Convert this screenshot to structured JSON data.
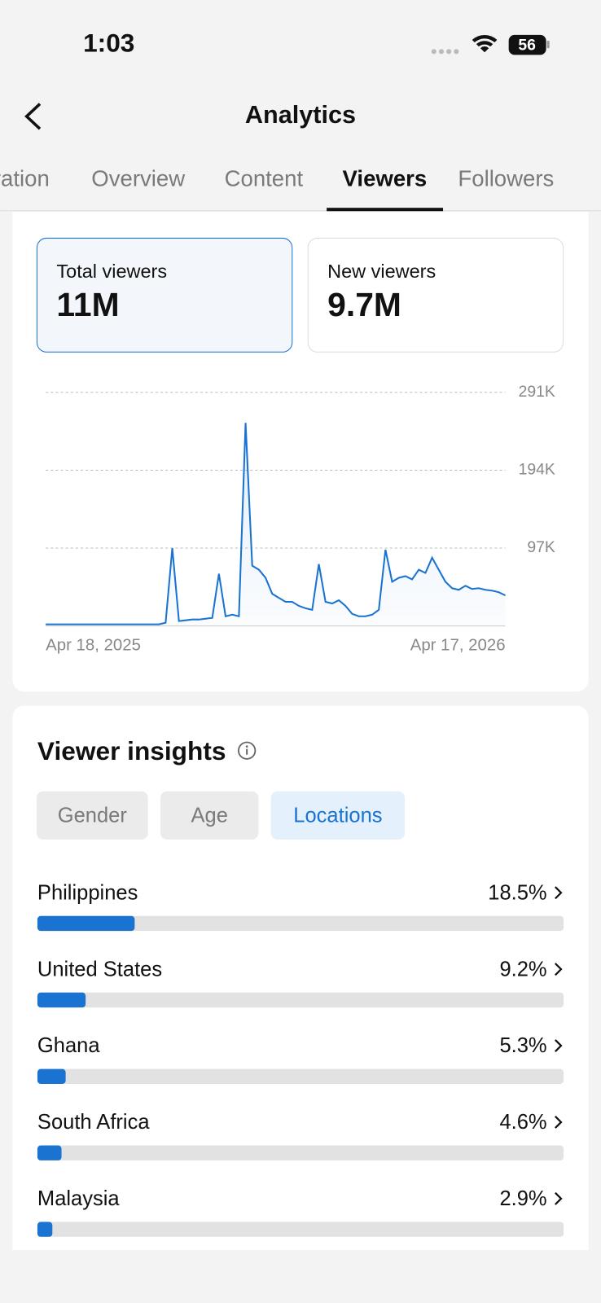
{
  "status_bar": {
    "time": "1:03",
    "battery": "56"
  },
  "header": {
    "title": "Analytics"
  },
  "tabs": [
    "ration",
    "Overview",
    "Content",
    "Viewers",
    "Followers"
  ],
  "active_tab": 3,
  "cards": [
    {
      "label": "Total viewers",
      "value": "11M"
    },
    {
      "label": "New viewers",
      "value": "9.7M"
    }
  ],
  "chart_data": {
    "type": "line",
    "color": "#1a73d1",
    "grid": true,
    "categories": [
      "Apr 18, 2025",
      null,
      null,
      null,
      null,
      null,
      null,
      null,
      null,
      null,
      null,
      null,
      null,
      null,
      null,
      null,
      null,
      null,
      null,
      null,
      null,
      null,
      null,
      null,
      null,
      null,
      null,
      null,
      null,
      null,
      null,
      null,
      null,
      null,
      null,
      null,
      null,
      null,
      null,
      null,
      null,
      null,
      null,
      null,
      null,
      null,
      null,
      null,
      null,
      null,
      null,
      null,
      null,
      null,
      null,
      null,
      null,
      null,
      null,
      null,
      null,
      null,
      null,
      null,
      null,
      null,
      null,
      null,
      null,
      "Apr 17, 2026"
    ],
    "values": [
      2000,
      2000,
      2000,
      2000,
      2000,
      2000,
      2000,
      2000,
      2000,
      2000,
      2000,
      2000,
      2000,
      2000,
      2000,
      2000,
      2000,
      2000,
      4000,
      97000,
      6000,
      7000,
      8000,
      8000,
      9000,
      10000,
      65000,
      12000,
      14000,
      12000,
      253000,
      75000,
      70000,
      60000,
      40000,
      35000,
      30000,
      30000,
      25000,
      22000,
      20000,
      77000,
      30000,
      28000,
      32000,
      25000,
      15000,
      12000,
      12000,
      14000,
      20000,
      95000,
      55000,
      60000,
      62000,
      58000,
      70000,
      66000,
      85000,
      70000,
      55000,
      47000,
      45000,
      50000,
      46000,
      47000,
      45000,
      44000,
      42000,
      38000
    ],
    "ylim": [
      0,
      291000
    ],
    "yticks": [
      {
        "value": 97000,
        "label": "97K"
      },
      {
        "value": 194000,
        "label": "194K"
      },
      {
        "value": 291000,
        "label": "291K"
      }
    ]
  },
  "insights": {
    "title": "Viewer insights",
    "chips": [
      "Gender",
      "Age",
      "Locations"
    ],
    "active_chip": 2,
    "locations": {
      "categories": [
        "Philippines",
        "United States",
        "Ghana",
        "South Africa",
        "Malaysia"
      ],
      "values": [
        18.5,
        9.2,
        5.3,
        4.6,
        2.9
      ],
      "value_labels": [
        "18.5%",
        "9.2%",
        "5.3%",
        "4.6%",
        "2.9%"
      ],
      "xlim": [
        0,
        100
      ],
      "color": "#1a73d1"
    }
  }
}
